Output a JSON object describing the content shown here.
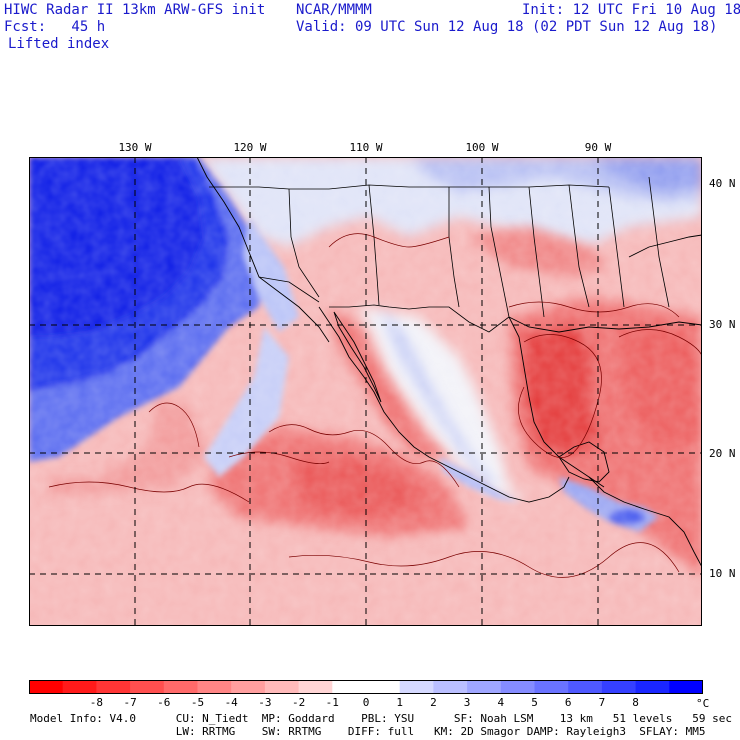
{
  "header": {
    "model_line": "HIWC Radar II 13km ARW-GFS init",
    "org": "NCAR/MMMM",
    "init": "Init: 12 UTC Fri 10 Aug 18",
    "fcst": "Fcst:   45 h",
    "valid": "Valid: 09 UTC Sun 12 Aug 18 (02 PDT Sun 12 Aug 18)",
    "field": "Lifted index"
  },
  "map": {
    "longitude_labels": [
      "130 W",
      "120 W",
      "110 W",
      "100 W",
      "90 W"
    ],
    "latitude_labels": [
      "40 N",
      "30 N",
      "20 N",
      "10 N"
    ],
    "colors": {
      "ocean_stable": "#0a1ee6",
      "stable_mid": "#5a6cf0",
      "stable_light": "#b9c3f7",
      "neutral": "#f2f2f8",
      "unstable_light": "#f7b6b6",
      "unstable_mid": "#ef6a6a",
      "unstable_strong": "#e43a3a"
    }
  },
  "colorbar": {
    "ticks": [
      "-8",
      "-7",
      "-6",
      "-5",
      "-4",
      "-3",
      "-2",
      "-1",
      "0",
      "1",
      "2",
      "3",
      "4",
      "5",
      "6",
      "7",
      "8"
    ],
    "unit": "°C",
    "colors": [
      "#ff0000",
      "#ff1a1a",
      "#ff3535",
      "#ff4f4f",
      "#ff6a6a",
      "#ff8585",
      "#ff9f9f",
      "#ffbaba",
      "#ffd5d5",
      "#ffffff",
      "#ffffff",
      "#d5d9ff",
      "#babfff",
      "#9fa6ff",
      "#858cff",
      "#6a73ff",
      "#4f59ff",
      "#3540ff",
      "#1a26ff",
      "#0000ff"
    ]
  },
  "footer": {
    "line1": "Model Info: V4.0      CU: N_Tiedt  MP: Goddard    PBL: YSU      SF: Noah LSM    13 km   51 levels   59 sec",
    "line2": "                      LW: RRTMG    SW: RRTMG    DIFF: full   KM: 2D Smagor DAMP: Rayleigh3  SFLAY: MM5"
  }
}
